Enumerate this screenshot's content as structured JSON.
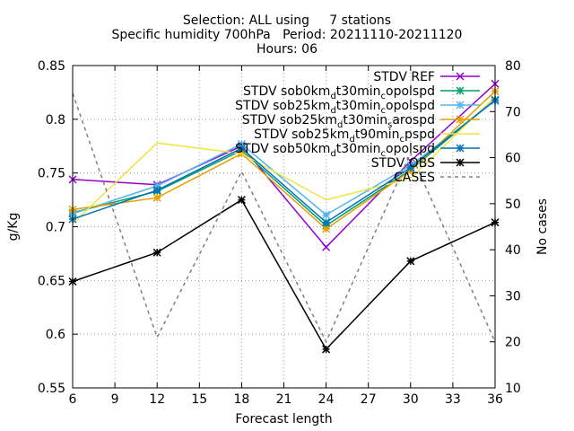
{
  "chart_data": {
    "type": "line",
    "title_lines": [
      "Selection: ALL using     7 stations",
      "Specific humidity 700hPa   Period: 20211110-20211120",
      "Hours: 06"
    ],
    "xlabel": "Forecast length",
    "ylabel": "g/Kg",
    "y2label": "No cases",
    "xlim": [
      6,
      36
    ],
    "ylim": [
      0.55,
      0.85
    ],
    "y2lim": [
      10,
      80
    ],
    "x_ticks": [
      6,
      9,
      12,
      15,
      18,
      21,
      24,
      27,
      30,
      33,
      36
    ],
    "y_ticks": [
      0.55,
      0.6,
      0.65,
      0.7,
      0.75,
      0.8,
      0.85
    ],
    "y2_ticks": [
      10,
      20,
      30,
      40,
      50,
      60,
      70,
      80
    ],
    "grid": true,
    "legend_position": "top-right",
    "x": [
      6,
      12,
      18,
      24,
      30,
      36
    ],
    "series": [
      {
        "name": "STDV REF",
        "axis": "y",
        "color": "#9400d3",
        "marker": "cross",
        "values": [
          0.744,
          0.739,
          0.775,
          0.681,
          0.761,
          0.833
        ]
      },
      {
        "name": "STDV sob0km_d t30min_c opolspd",
        "axis": "y",
        "color": "#009e73",
        "marker": "star",
        "values": [
          0.713,
          0.733,
          0.771,
          0.701,
          0.753,
          0.818
        ]
      },
      {
        "name": "STDV sob25km_d t30min_c opolspd",
        "axis": "y",
        "color": "#56b4e9",
        "marker": "star",
        "values": [
          0.712,
          0.738,
          0.777,
          0.711,
          0.757,
          0.817
        ]
      },
      {
        "name": "STDV sob25km_d t30min_s arospd",
        "axis": "y",
        "color": "#e69f00",
        "marker": "star",
        "values": [
          0.716,
          0.727,
          0.768,
          0.698,
          0.752,
          0.826
        ]
      },
      {
        "name": "STDV sob25km_d t90min_c pspd",
        "axis": "y",
        "color": "#f0e442",
        "marker": "none",
        "values": [
          0.703,
          0.778,
          0.768,
          0.725,
          0.745,
          0.821
        ]
      },
      {
        "name": "STDV sob50km_d t30min_c opolspd",
        "axis": "y",
        "color": "#0072b2",
        "marker": "star",
        "values": [
          0.707,
          0.734,
          0.773,
          0.704,
          0.755,
          0.818
        ]
      },
      {
        "name": "STDV OBS",
        "axis": "y",
        "color": "#000000",
        "marker": "star",
        "values": [
          0.649,
          0.676,
          0.725,
          0.586,
          0.668,
          0.704
        ]
      },
      {
        "name": "CASES",
        "axis": "y2",
        "color": "#808080",
        "marker": "none",
        "dashed": true,
        "values": [
          74,
          21,
          57,
          20,
          61,
          20
        ]
      }
    ]
  }
}
